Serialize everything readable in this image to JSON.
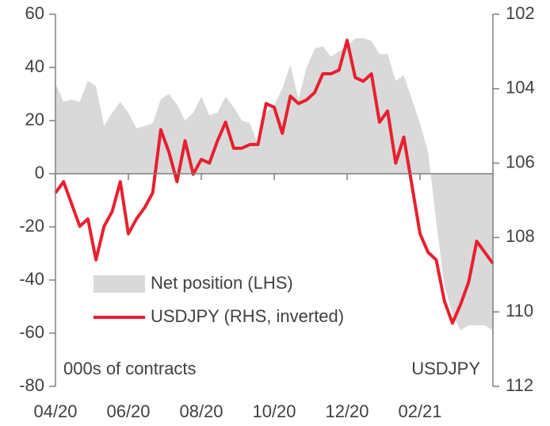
{
  "chart_data": {
    "type": "line",
    "categories": [
      "04/20",
      null,
      null,
      null,
      null,
      null,
      null,
      null,
      null,
      "06/20",
      null,
      null,
      null,
      null,
      null,
      null,
      null,
      null,
      "08/20",
      null,
      null,
      null,
      null,
      null,
      null,
      null,
      null,
      "10/20",
      null,
      null,
      null,
      null,
      null,
      null,
      null,
      null,
      "12/20",
      null,
      null,
      null,
      null,
      null,
      null,
      null,
      null,
      "02/21",
      null,
      null,
      null,
      null,
      null,
      null,
      null,
      null,
      null
    ],
    "series": [
      {
        "name": "Net position (LHS)",
        "type": "area",
        "color": "#d9d9d9",
        "axis": "y",
        "values": [
          34,
          27,
          28,
          27,
          35,
          33,
          18,
          23,
          27,
          23,
          17,
          18,
          19,
          28,
          30,
          26,
          20,
          23,
          29,
          22,
          23,
          29,
          25,
          20,
          19,
          11,
          23,
          26,
          32,
          41,
          28,
          40,
          47,
          48,
          44,
          46,
          48,
          51,
          51,
          50,
          45,
          45,
          35,
          37,
          28,
          19,
          8,
          -18,
          -42,
          -53,
          -59,
          -57,
          -57,
          -57,
          -59
        ]
      },
      {
        "name": "USDJPY (RHS, inverted)",
        "type": "line",
        "color": "#e8202e",
        "axis": "y2",
        "values": [
          106.8,
          106.5,
          107.1,
          107.7,
          107.5,
          108.6,
          107.7,
          107.3,
          106.5,
          107.9,
          107.5,
          107.2,
          106.8,
          105.1,
          105.7,
          106.5,
          105.4,
          106.3,
          105.9,
          106.0,
          105.4,
          104.9,
          105.6,
          105.6,
          105.5,
          105.5,
          104.4,
          104.5,
          105.2,
          104.2,
          104.4,
          104.3,
          104.1,
          103.6,
          103.6,
          103.5,
          102.7,
          103.7,
          103.8,
          103.6,
          104.9,
          104.6,
          106.0,
          105.3,
          106.6,
          107.9,
          108.4,
          108.6,
          109.7,
          110.3,
          109.8,
          109.2,
          108.1,
          108.4,
          108.7
        ]
      }
    ],
    "ylim": [
      -80,
      60
    ],
    "yticks": [
      60,
      40,
      20,
      0,
      -20,
      -40,
      -60,
      -80
    ],
    "y2lim": [
      102,
      112
    ],
    "y2ticks": [
      102,
      104,
      106,
      108,
      110,
      112
    ],
    "y2_inverted": true,
    "legend": "left",
    "annotations": [
      "000s of contracts",
      "USDJPY"
    ]
  }
}
